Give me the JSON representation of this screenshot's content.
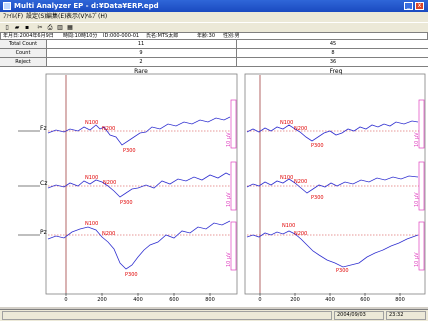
{
  "window": {
    "title": "Multi Analyzer EP - d:¥Data¥ERP.epd",
    "min": "_",
    "close": "x"
  },
  "menu": [
    "ﾌｧｲﾙ(F)",
    "設定(S)",
    "編集(E)",
    "表示(V)",
    "ﾍﾙﾌﾟ(H)"
  ],
  "toolbar_icons": [
    "new-file-icon",
    "open-file-icon",
    "save-icon",
    "settings-icon",
    "print-icon",
    "chart-icon",
    "grid-icon"
  ],
  "toolbar_glyphs": [
    "▯",
    "▰",
    "▪",
    "✂",
    "⎙",
    "▥",
    "▦"
  ],
  "info": {
    "date": "年月日:2004年6月9日",
    "time": "時間:10時10分",
    "id": "ID:000-000-01",
    "name": "氏名:MTS太郎",
    "age": "年齢:30",
    "sex": "性別:男"
  },
  "stats": [
    {
      "label": "Total Count",
      "rare": "11",
      "freq": "45"
    },
    {
      "label": "Count",
      "rare": "9",
      "freq": "8"
    },
    {
      "label": "Reject",
      "rare": "2",
      "freq": "36"
    }
  ],
  "columns": {
    "rare": "Rare",
    "freq": "Freq"
  },
  "channels": [
    "Fz",
    "Cz",
    "Pz"
  ],
  "scale_label": "10 μV",
  "x_ticks": [
    "0",
    "200",
    "400",
    "600",
    "800"
  ],
  "peaks": {
    "n1": "N100",
    "n2": "N200",
    "p3": "P300"
  },
  "status": {
    "date": "2004/09/03",
    "time": "23:32"
  },
  "colors": {
    "trace": "#3030d0",
    "baseline": "#d03030",
    "peak": "#e00000",
    "scale": "#e040c0"
  }
}
